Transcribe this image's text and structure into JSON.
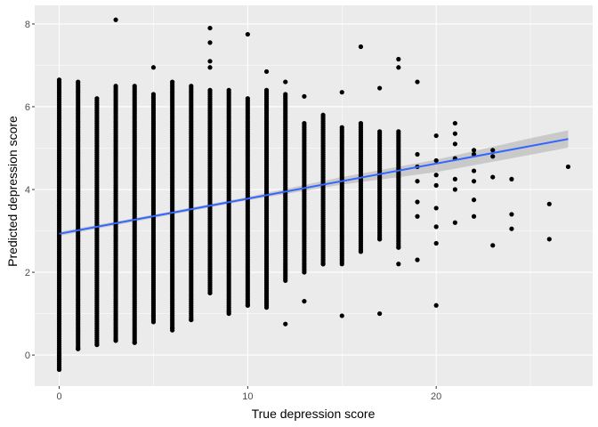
{
  "chart_data": {
    "type": "scatter",
    "title": "",
    "xlabel": "True depression score",
    "ylabel": "Predicted depression score",
    "xlim": [
      -1.3,
      28.3
    ],
    "ylim": [
      -0.75,
      8.45
    ],
    "x_ticks": [
      0,
      10,
      20
    ],
    "y_ticks": [
      0,
      2,
      4,
      6,
      8
    ],
    "x_tick_labels": [
      "0",
      "10",
      "20"
    ],
    "y_tick_labels": [
      "0",
      "2",
      "4",
      "6",
      "8"
    ],
    "grid": true,
    "legend": "none",
    "colors": {
      "panel_background": "#EBEBEB",
      "grid_major": "#FFFFFF",
      "points": "#000000",
      "fit_line": "#3366FF",
      "confidence_band": "#B3B3B3"
    },
    "point_columns": [
      {
        "x": 0,
        "y_min": -0.35,
        "y_max": 6.65
      },
      {
        "x": 1,
        "y_min": 0.15,
        "y_max": 6.6
      },
      {
        "x": 2,
        "y_min": 0.25,
        "y_max": 6.2
      },
      {
        "x": 3,
        "y_min": 0.35,
        "y_max": 6.5
      },
      {
        "x": 4,
        "y_min": 0.3,
        "y_max": 6.5
      },
      {
        "x": 5,
        "y_min": 0.8,
        "y_max": 6.3
      },
      {
        "x": 6,
        "y_min": 0.6,
        "y_max": 6.6
      },
      {
        "x": 7,
        "y_min": 0.85,
        "y_max": 6.5
      },
      {
        "x": 8,
        "y_min": 1.5,
        "y_max": 6.4
      },
      {
        "x": 9,
        "y_min": 1.0,
        "y_max": 6.4
      },
      {
        "x": 10,
        "y_min": 1.2,
        "y_max": 6.2
      },
      {
        "x": 11,
        "y_min": 1.2,
        "y_max": 6.4
      },
      {
        "x": 12,
        "y_min": 1.8,
        "y_max": 6.3
      },
      {
        "x": 13,
        "y_min": 2.0,
        "y_max": 5.6
      },
      {
        "x": 14,
        "y_min": 2.2,
        "y_max": 5.8
      },
      {
        "x": 15,
        "y_min": 2.2,
        "y_max": 5.5
      },
      {
        "x": 16,
        "y_min": 2.5,
        "y_max": 5.6
      },
      {
        "x": 17,
        "y_min": 2.8,
        "y_max": 5.4
      },
      {
        "x": 18,
        "y_min": 2.6,
        "y_max": 5.4
      }
    ],
    "points": [
      [
        3,
        8.1
      ],
      [
        8,
        7.9
      ],
      [
        8,
        7.55
      ],
      [
        8,
        7.1
      ],
      [
        8,
        6.95
      ],
      [
        10,
        7.75
      ],
      [
        5,
        6.95
      ],
      [
        16,
        7.45
      ],
      [
        18,
        7.15
      ],
      [
        18,
        6.95
      ],
      [
        17,
        6.45
      ],
      [
        19,
        6.6
      ],
      [
        11,
        6.85
      ],
      [
        12,
        6.6
      ],
      [
        13,
        6.25
      ],
      [
        15,
        6.35
      ],
      [
        0,
        -0.35
      ],
      [
        0,
        -0.1
      ],
      [
        0,
        0.0
      ],
      [
        1,
        0.15
      ],
      [
        2,
        0.25
      ],
      [
        3,
        0.35
      ],
      [
        4,
        0.3
      ],
      [
        5,
        0.95
      ],
      [
        6,
        0.65
      ],
      [
        7,
        0.85
      ],
      [
        8,
        1.5
      ],
      [
        9,
        1.05
      ],
      [
        10,
        1.2
      ],
      [
        11,
        1.15
      ],
      [
        12,
        0.75
      ],
      [
        13,
        1.3
      ],
      [
        15,
        0.95
      ],
      [
        17,
        1.0
      ],
      [
        20,
        1.2
      ],
      [
        14,
        2.2
      ],
      [
        16,
        2.5
      ],
      [
        17,
        2.8
      ],
      [
        18,
        2.2
      ],
      [
        18,
        2.6
      ],
      [
        19,
        2.3
      ],
      [
        19,
        3.35
      ],
      [
        19,
        3.7
      ],
      [
        19,
        4.2
      ],
      [
        19,
        4.55
      ],
      [
        19,
        4.85
      ],
      [
        20,
        2.7
      ],
      [
        20,
        3.1
      ],
      [
        20,
        3.55
      ],
      [
        20,
        4.1
      ],
      [
        20,
        4.35
      ],
      [
        20,
        4.7
      ],
      [
        20,
        5.3
      ],
      [
        21,
        3.2
      ],
      [
        21,
        4.0
      ],
      [
        21,
        4.25
      ],
      [
        21,
        4.75
      ],
      [
        21,
        5.1
      ],
      [
        21,
        5.35
      ],
      [
        21,
        5.6
      ],
      [
        22,
        3.35
      ],
      [
        22,
        3.75
      ],
      [
        22,
        4.2
      ],
      [
        22,
        4.45
      ],
      [
        22,
        4.85
      ],
      [
        22,
        4.95
      ],
      [
        23,
        2.65
      ],
      [
        23,
        4.3
      ],
      [
        23,
        4.8
      ],
      [
        23,
        4.95
      ],
      [
        24,
        3.05
      ],
      [
        24,
        3.4
      ],
      [
        24,
        4.25
      ],
      [
        26,
        2.8
      ],
      [
        26,
        3.65
      ],
      [
        27,
        4.55
      ]
    ],
    "fit_line": {
      "x": [
        0,
        27
      ],
      "y": [
        2.93,
        5.22
      ]
    },
    "confidence_band": {
      "x": [
        0,
        5,
        10,
        15,
        20,
        25,
        27
      ],
      "lower": [
        2.88,
        3.31,
        3.74,
        4.12,
        4.42,
        4.84,
        5.01
      ],
      "upper": [
        2.98,
        3.39,
        3.82,
        4.3,
        4.72,
        5.24,
        5.43
      ]
    }
  }
}
